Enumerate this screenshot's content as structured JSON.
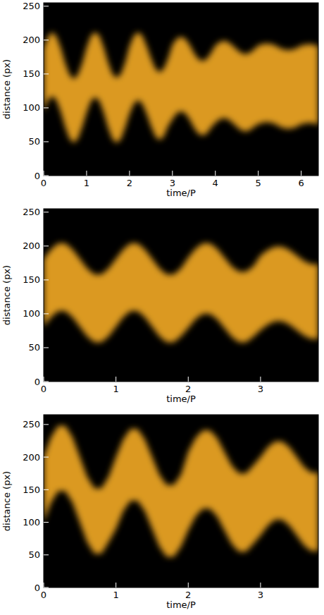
{
  "chart_data": [
    {
      "type": "area",
      "xlabel": "time/P",
      "ylabel": "distance (px)",
      "xlim": [
        0,
        6.4
      ],
      "ylim": [
        0,
        255
      ],
      "xticks": [
        0,
        1,
        2,
        3,
        4,
        5,
        6
      ],
      "yticks": [
        0,
        50,
        100,
        150,
        200,
        250
      ],
      "x": [
        0,
        0.1,
        0.2,
        0.3,
        0.4,
        0.5,
        0.6,
        0.7,
        0.8,
        0.9,
        1,
        1.1,
        1.2,
        1.3,
        1.4,
        1.5,
        1.6,
        1.7,
        1.8,
        1.9,
        2,
        2.1,
        2.2,
        2.3,
        2.4,
        2.5,
        2.6,
        2.7,
        2.8,
        2.9,
        3,
        3.1,
        3.2,
        3.3,
        3.4,
        3.5,
        3.6,
        3.7,
        3.8,
        3.9,
        4,
        4.1,
        4.2,
        4.3,
        4.4,
        4.5,
        4.6,
        4.7,
        4.8,
        4.9,
        5,
        5.1,
        5.2,
        5.3,
        5.4,
        5.5,
        5.6,
        5.7,
        5.8,
        5.9,
        6,
        6.1,
        6.2,
        6.3,
        6.4
      ],
      "series": [
        {
          "color": "#eea623",
          "values": [
            188,
            205,
            212,
            205,
            188,
            166,
            149,
            142,
            149,
            166,
            189,
            206,
            212,
            206,
            189,
            167,
            150,
            144,
            150,
            167,
            191,
            206,
            212,
            206,
            191,
            173,
            158,
            152,
            158,
            173,
            193,
            202,
            205,
            202,
            193,
            181,
            172,
            169,
            172,
            181,
            192,
            197,
            199,
            197,
            192,
            186,
            181,
            179,
            181,
            186,
            192,
            194,
            195,
            194,
            192,
            188,
            186,
            185,
            186,
            188,
            192,
            193,
            194,
            193,
            191
          ],
          "low": [
            94,
            111,
            118,
            111,
            94,
            72,
            55,
            48,
            55,
            72,
            93,
            110,
            116,
            110,
            93,
            71,
            54,
            48,
            54,
            71,
            91,
            106,
            112,
            106,
            91,
            73,
            58,
            52,
            58,
            73,
            83,
            92,
            95,
            92,
            83,
            71,
            62,
            59,
            62,
            71,
            78,
            83,
            85,
            83,
            78,
            72,
            67,
            65,
            67,
            72,
            76,
            78,
            79,
            78,
            76,
            72,
            70,
            69,
            70,
            72,
            76,
            77,
            78,
            77,
            75
          ]
        }
      ]
    },
    {
      "type": "area",
      "xlabel": "time/P",
      "ylabel": "distance (px)",
      "xlim": [
        0,
        3.8
      ],
      "ylim": [
        0,
        255
      ],
      "xticks": [
        0,
        1,
        2,
        3
      ],
      "yticks": [
        0,
        50,
        100,
        150,
        200,
        250
      ],
      "x": [
        0,
        0.1,
        0.2,
        0.3,
        0.4,
        0.5,
        0.6,
        0.7,
        0.8,
        0.9,
        1,
        1.1,
        1.2,
        1.3,
        1.4,
        1.5,
        1.6,
        1.7,
        1.8,
        1.9,
        2,
        2.1,
        2.2,
        2.3,
        2.4,
        2.5,
        2.6,
        2.7,
        2.8,
        2.9,
        3,
        3.1,
        3.2,
        3.3,
        3.4,
        3.5,
        3.6,
        3.7,
        3.8
      ],
      "series": [
        {
          "color": "#eea623",
          "values": [
            181,
            195,
            204,
            204,
            195,
            181,
            167,
            158,
            158,
            167,
            181,
            195,
            204,
            204,
            195,
            181,
            167,
            158,
            158,
            167,
            183,
            196,
            204,
            204,
            196,
            183,
            170,
            162,
            162,
            170,
            186,
            194,
            199,
            199,
            194,
            186,
            178,
            173,
            173
          ],
          "low": [
            81,
            95,
            104,
            104,
            95,
            81,
            67,
            58,
            58,
            67,
            81,
            95,
            104,
            104,
            95,
            81,
            67,
            58,
            58,
            67,
            79,
            92,
            100,
            100,
            92,
            79,
            66,
            58,
            58,
            66,
            76,
            84,
            89,
            89,
            84,
            76,
            68,
            63,
            63
          ]
        }
      ]
    },
    {
      "type": "area",
      "xlabel": "time/P",
      "ylabel": "distance (px)",
      "xlim": [
        0,
        3.8
      ],
      "ylim": [
        0,
        265
      ],
      "xticks": [
        0,
        1,
        2,
        3
      ],
      "yticks": [
        0,
        50,
        100,
        150,
        200,
        250
      ],
      "x": [
        0,
        0.1,
        0.2,
        0.3,
        0.4,
        0.5,
        0.6,
        0.7,
        0.8,
        0.9,
        1,
        1.1,
        1.2,
        1.3,
        1.4,
        1.5,
        1.6,
        1.7,
        1.8,
        1.9,
        2,
        2.1,
        2.2,
        2.3,
        2.4,
        2.5,
        2.6,
        2.7,
        2.8,
        2.9,
        3,
        3.1,
        3.2,
        3.3,
        3.4,
        3.5,
        3.6,
        3.7,
        3.8
      ],
      "series": [
        {
          "color": "#eea623",
          "values": [
            200,
            230,
            248,
            248,
            230,
            200,
            170,
            152,
            152,
            170,
            200,
            227,
            243,
            243,
            227,
            200,
            173,
            157,
            157,
            173,
            208,
            229,
            241,
            241,
            229,
            208,
            187,
            175,
            175,
            187,
            200,
            215,
            224,
            224,
            215,
            200,
            185,
            176,
            176
          ],
          "low": [
            100,
            130,
            148,
            148,
            130,
            100,
            70,
            52,
            52,
            70,
            90,
            117,
            133,
            133,
            117,
            90,
            63,
            47,
            47,
            63,
            88,
            109,
            121,
            121,
            109,
            88,
            67,
            55,
            55,
            67,
            80,
            95,
            104,
            104,
            95,
            80,
            65,
            56,
            56
          ]
        }
      ]
    }
  ]
}
